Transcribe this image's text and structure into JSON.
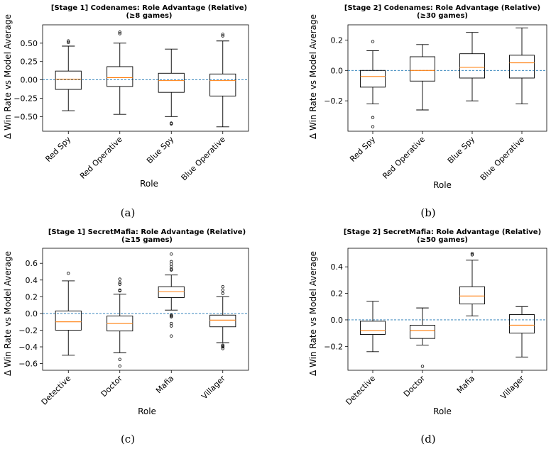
{
  "colors": {
    "median": "#ff7f0e",
    "refline": "#1f77b4",
    "box": "#000000",
    "background": "#ffffff"
  },
  "chart_data": [
    {
      "type": "box",
      "title": "[Stage 1] Codenames: Role Advantage (Relative)",
      "subtitle": "(≥8 games)",
      "caption": "(a)",
      "xlabel": "Role",
      "ylabel": "Δ Win Rate vs Model Average",
      "ylim": [
        -0.7,
        0.75
      ],
      "yticks": [
        -0.5,
        -0.25,
        0.0,
        0.25,
        0.5
      ],
      "ytick_labels": [
        "−0.50",
        "−0.25",
        "0.00",
        "0.25",
        "0.50"
      ],
      "reference_line": 0,
      "categories": [
        "Red Spy",
        "Red Operative",
        "Blue Spy",
        "Blue Operative"
      ],
      "boxes": [
        {
          "whislo": -0.42,
          "q1": -0.13,
          "med": 0.01,
          "q3": 0.12,
          "whishi": 0.46,
          "fliers": [
            0.51,
            0.53
          ]
        },
        {
          "whislo": -0.47,
          "q1": -0.09,
          "med": 0.03,
          "q3": 0.18,
          "whishi": 0.5,
          "fliers": [
            0.63,
            0.65
          ]
        },
        {
          "whislo": -0.5,
          "q1": -0.17,
          "med": -0.01,
          "q3": 0.09,
          "whishi": 0.42,
          "fliers": [
            -0.59,
            -0.6
          ]
        },
        {
          "whislo": -0.64,
          "q1": -0.22,
          "med": -0.01,
          "q3": 0.08,
          "whishi": 0.53,
          "fliers": [
            0.6,
            0.62
          ]
        }
      ]
    },
    {
      "type": "box",
      "title": "[Stage 2] Codenames: Role Advantage (Relative)",
      "subtitle": "(≥30 games)",
      "caption": "(b)",
      "xlabel": "Role",
      "ylabel": "Δ Win Rate vs Model Average",
      "ylim": [
        -0.4,
        0.3
      ],
      "yticks": [
        -0.2,
        0.0,
        0.2
      ],
      "ytick_labels": [
        "−0.2",
        "0.0",
        "0.2"
      ],
      "reference_line": 0,
      "categories": [
        "Red Spy",
        "Red Operative",
        "Blue Spy",
        "Blue Operative"
      ],
      "boxes": [
        {
          "whislo": -0.22,
          "q1": -0.11,
          "med": -0.04,
          "q3": 0.0,
          "whishi": 0.13,
          "fliers": [
            0.19,
            -0.31,
            -0.37
          ]
        },
        {
          "whislo": -0.26,
          "q1": -0.07,
          "med": 0.0,
          "q3": 0.09,
          "whishi": 0.17,
          "fliers": []
        },
        {
          "whislo": -0.2,
          "q1": -0.05,
          "med": 0.02,
          "q3": 0.11,
          "whishi": 0.25,
          "fliers": []
        },
        {
          "whislo": -0.22,
          "q1": -0.05,
          "med": 0.05,
          "q3": 0.1,
          "whishi": 0.28,
          "fliers": []
        }
      ]
    },
    {
      "type": "box",
      "title": "[Stage 1] SecretMafia: Role Advantage (Relative)",
      "subtitle": "(≥15 games)",
      "caption": "(c)",
      "xlabel": "Role",
      "ylabel": "Δ Win Rate vs Model Average",
      "ylim": [
        -0.68,
        0.78
      ],
      "yticks": [
        -0.6,
        -0.4,
        -0.2,
        0.0,
        0.2,
        0.4,
        0.6
      ],
      "ytick_labels": [
        "−0.6",
        "−0.4",
        "−0.2",
        "0.0",
        "0.2",
        "0.4",
        "0.6"
      ],
      "reference_line": 0,
      "categories": [
        "Detective",
        "Doctor",
        "Mafia",
        "Villager"
      ],
      "boxes": [
        {
          "whislo": -0.5,
          "q1": -0.2,
          "med": -0.1,
          "q3": 0.03,
          "whishi": 0.39,
          "fliers": [
            0.48
          ]
        },
        {
          "whislo": -0.47,
          "q1": -0.21,
          "med": -0.12,
          "q3": -0.03,
          "whishi": 0.23,
          "fliers": [
            0.27,
            0.28,
            0.35,
            0.37,
            0.41,
            -0.55,
            -0.63
          ]
        },
        {
          "whislo": 0.04,
          "q1": 0.19,
          "med": 0.26,
          "q3": 0.32,
          "whishi": 0.46,
          "fliers": [
            0.52,
            0.53,
            0.56,
            0.59,
            0.62,
            0.71,
            -0.02,
            -0.03,
            -0.04,
            -0.12,
            -0.15,
            -0.27
          ]
        },
        {
          "whislo": -0.35,
          "q1": -0.16,
          "med": -0.08,
          "q3": -0.02,
          "whishi": 0.2,
          "fliers": [
            0.24,
            0.28,
            0.32,
            -0.38,
            -0.39,
            -0.4,
            -0.42
          ]
        }
      ]
    },
    {
      "type": "box",
      "title": "[Stage 2] SecretMafia: Role Advantage (Relative)",
      "subtitle": "(≥50 games)",
      "caption": "(d)",
      "xlabel": "Role",
      "ylabel": "Δ Win Rate vs Model Average",
      "ylim": [
        -0.38,
        0.54
      ],
      "yticks": [
        -0.2,
        0.0,
        0.2,
        0.4
      ],
      "ytick_labels": [
        "−0.2",
        "0.0",
        "0.2",
        "0.4"
      ],
      "reference_line": 0,
      "categories": [
        "Detective",
        "Doctor",
        "Mafia",
        "Villager"
      ],
      "boxes": [
        {
          "whislo": -0.24,
          "q1": -0.11,
          "med": -0.08,
          "q3": -0.01,
          "whishi": 0.14,
          "fliers": []
        },
        {
          "whislo": -0.19,
          "q1": -0.14,
          "med": -0.08,
          "q3": -0.04,
          "whishi": 0.09,
          "fliers": [
            -0.35
          ]
        },
        {
          "whislo": 0.03,
          "q1": 0.12,
          "med": 0.18,
          "q3": 0.25,
          "whishi": 0.45,
          "fliers": [
            0.49,
            0.5
          ]
        },
        {
          "whislo": -0.28,
          "q1": -0.1,
          "med": -0.04,
          "q3": 0.04,
          "whishi": 0.1,
          "fliers": []
        }
      ]
    }
  ]
}
